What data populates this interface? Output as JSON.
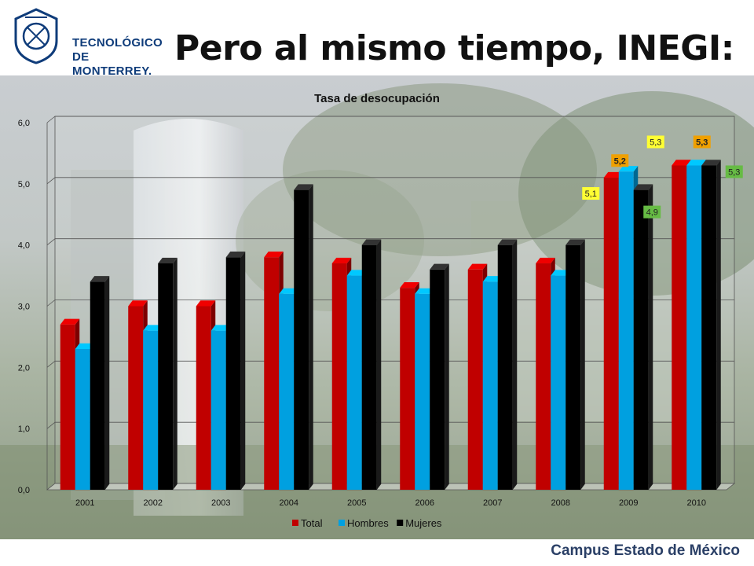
{
  "header": {
    "logo_line1": "TECNOLÓGICO",
    "logo_line2": "DE MONTERREY.",
    "title": "Pero al mismo tiempo, INEGI:"
  },
  "footer": {
    "campus": "Campus Estado de México"
  },
  "chart_data": {
    "type": "bar",
    "title": "Tasa de desocupación",
    "xlabel": "",
    "ylabel": "",
    "ylim": [
      0,
      6
    ],
    "yticks": [
      "0,0",
      "1,0",
      "2,0",
      "3,0",
      "4,0",
      "5,0",
      "6,0"
    ],
    "grid": true,
    "legend_position": "bottom",
    "categories": [
      "2001",
      "2002",
      "2003",
      "2004",
      "2005",
      "2006",
      "2007",
      "2008",
      "2009",
      "2010"
    ],
    "series": [
      {
        "name": "Total",
        "color": "#c00000",
        "values": [
          2.7,
          3.0,
          3.0,
          3.8,
          3.7,
          3.3,
          3.6,
          3.7,
          5.1,
          5.3
        ]
      },
      {
        "name": "Hombres",
        "color": "#00a0e0",
        "values": [
          2.3,
          2.6,
          2.6,
          3.2,
          3.5,
          3.2,
          3.4,
          3.5,
          5.2,
          5.3
        ]
      },
      {
        "name": "Mujeres",
        "color": "#000000",
        "values": [
          3.4,
          3.7,
          3.8,
          4.9,
          4.0,
          3.6,
          4.0,
          4.0,
          4.9,
          5.3
        ]
      }
    ],
    "data_labels": [
      {
        "category": "2009",
        "series": "Total",
        "text": "5,1",
        "bg": "#ffff33"
      },
      {
        "category": "2009",
        "series": "Hombres",
        "text": "5,2",
        "bg": "#f0a000"
      },
      {
        "category": "2009",
        "series": "Mujeres",
        "text": "4,9",
        "bg": "#66bb44"
      },
      {
        "category": "2010",
        "series": "Total",
        "text": "5,3",
        "bg": "#ffff33"
      },
      {
        "category": "2010",
        "series": "Hombres",
        "text": "5,3",
        "bg": "#f0a000"
      },
      {
        "category": "2010",
        "series": "Mujeres",
        "text": "5,3",
        "bg": "#66bb44"
      }
    ]
  }
}
